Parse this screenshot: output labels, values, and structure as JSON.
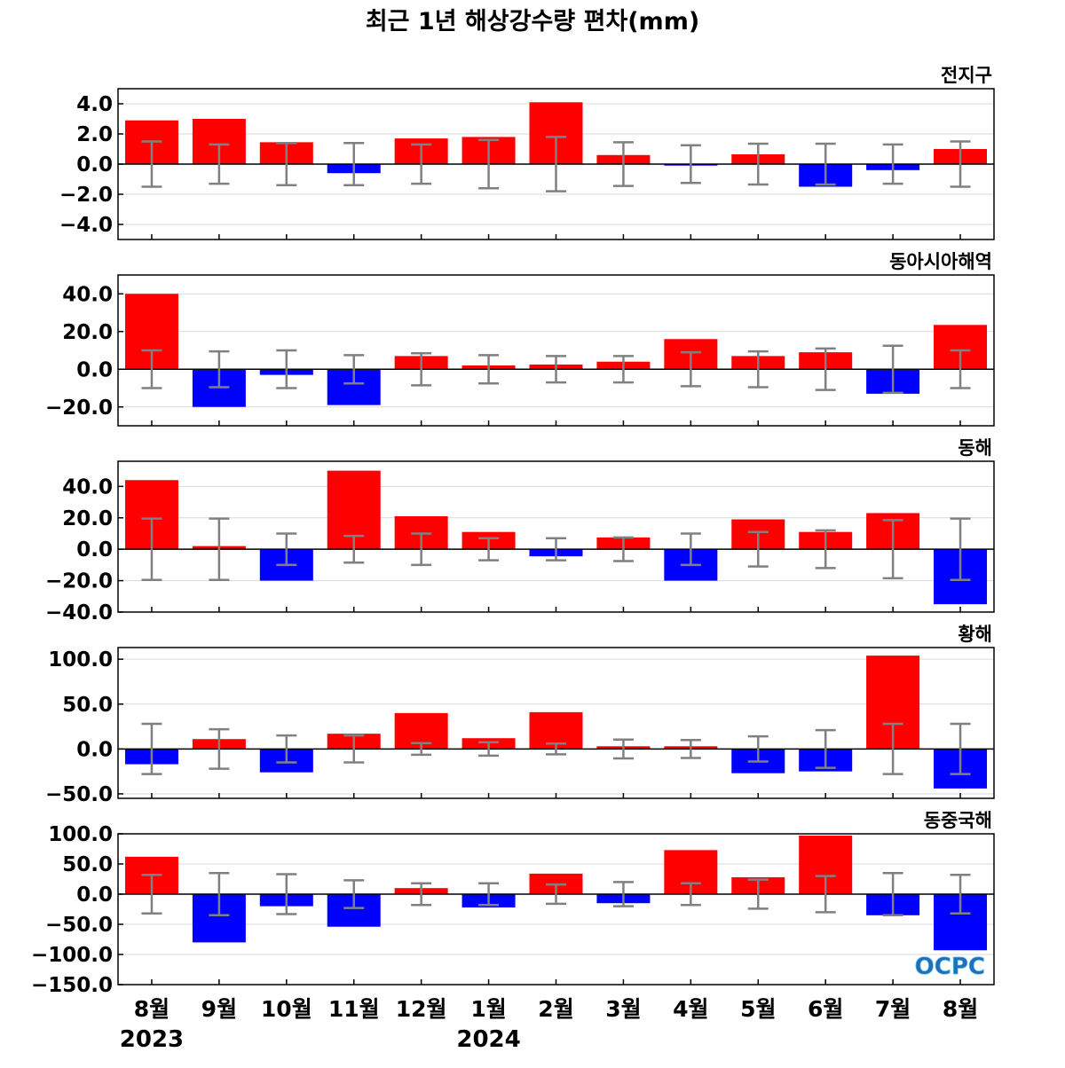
{
  "title": "최근 1년 해상강수량 편차(mm)",
  "colors": {
    "positive": "#ff0000",
    "negative": "#0000ff",
    "errorbar": "#808080",
    "grid": "#d9d9d9",
    "axis": "#000000"
  },
  "logo": {
    "text": "OCPC",
    "colors": [
      "#1e6fb8",
      "#5fb8e8"
    ]
  },
  "chart_data": {
    "type": "bar",
    "categories": [
      "8월",
      "9월",
      "10월",
      "11월",
      "12월",
      "1월",
      "2월",
      "3월",
      "4월",
      "5월",
      "6월",
      "7월",
      "8월"
    ],
    "year_labels": [
      {
        "text": "2023",
        "index": 0
      },
      {
        "text": "2024",
        "index": 5
      }
    ],
    "panels": [
      {
        "name": "전지구",
        "ylim": [
          -5,
          5
        ],
        "yticks": [
          -4,
          -2,
          0,
          2,
          4
        ],
        "tick_labels": [
          "−4.0",
          "−2.0",
          "0.0",
          "2.0",
          "4.0"
        ],
        "values": [
          2.9,
          3.0,
          1.45,
          -0.6,
          1.7,
          1.8,
          4.1,
          0.6,
          -0.1,
          0.65,
          -1.5,
          -0.4,
          1.0
        ],
        "error": [
          1.5,
          1.3,
          1.4,
          1.4,
          1.3,
          1.6,
          1.8,
          1.45,
          1.25,
          1.35,
          1.35,
          1.3,
          1.5
        ]
      },
      {
        "name": "동아시아해역",
        "ylim": [
          -30,
          50
        ],
        "yticks": [
          -20,
          0,
          20,
          40
        ],
        "tick_labels": [
          "−20.0",
          "0.0",
          "20.0",
          "40.0"
        ],
        "values": [
          40,
          -20,
          -3,
          -19,
          7,
          2,
          2.5,
          4,
          16,
          7,
          9,
          -13,
          23.5
        ],
        "error": [
          10,
          9.5,
          10,
          7.5,
          8.5,
          7.5,
          7,
          7,
          9,
          9.5,
          11,
          12.5,
          10
        ]
      },
      {
        "name": "동해",
        "ylim": [
          -40,
          56
        ],
        "yticks": [
          -40,
          -20,
          0,
          20,
          40
        ],
        "tick_labels": [
          "−40.0",
          "−20.0",
          "0.0",
          "20.0",
          "40.0"
        ],
        "values": [
          44,
          2,
          -20,
          50,
          21,
          11,
          -4.5,
          7.5,
          -20,
          19,
          11,
          23,
          -35
        ],
        "error": [
          19.5,
          19.5,
          10,
          8.5,
          10,
          7,
          7,
          7.5,
          10,
          11,
          12,
          18.5,
          19.5
        ]
      },
      {
        "name": "황해",
        "ylim": [
          -55,
          113
        ],
        "yticks": [
          -50,
          0,
          50,
          100
        ],
        "tick_labels": [
          "−50.0",
          "0.0",
          "50.0",
          "100.0"
        ],
        "values": [
          -17,
          11,
          -26,
          17,
          40,
          12,
          41,
          3,
          3,
          -27,
          -25,
          104,
          -44
        ],
        "error": [
          28,
          22,
          15,
          15,
          6.5,
          7.5,
          6,
          10.5,
          10,
          14,
          21,
          28,
          28
        ]
      },
      {
        "name": "동중국해",
        "ylim": [
          -150,
          100
        ],
        "yticks": [
          -150,
          -100,
          -50,
          0,
          50,
          100
        ],
        "tick_labels": [
          "−150.0",
          "−100.0",
          "−50.0",
          "0.0",
          "50.0",
          "100.0"
        ],
        "values": [
          62,
          -80,
          -20,
          -54,
          10,
          -22,
          34,
          -15,
          73,
          28,
          97,
          -35,
          -93
        ],
        "error": [
          32,
          35,
          33,
          23,
          18,
          18,
          16,
          20,
          18,
          24,
          30,
          35,
          32
        ]
      }
    ]
  }
}
